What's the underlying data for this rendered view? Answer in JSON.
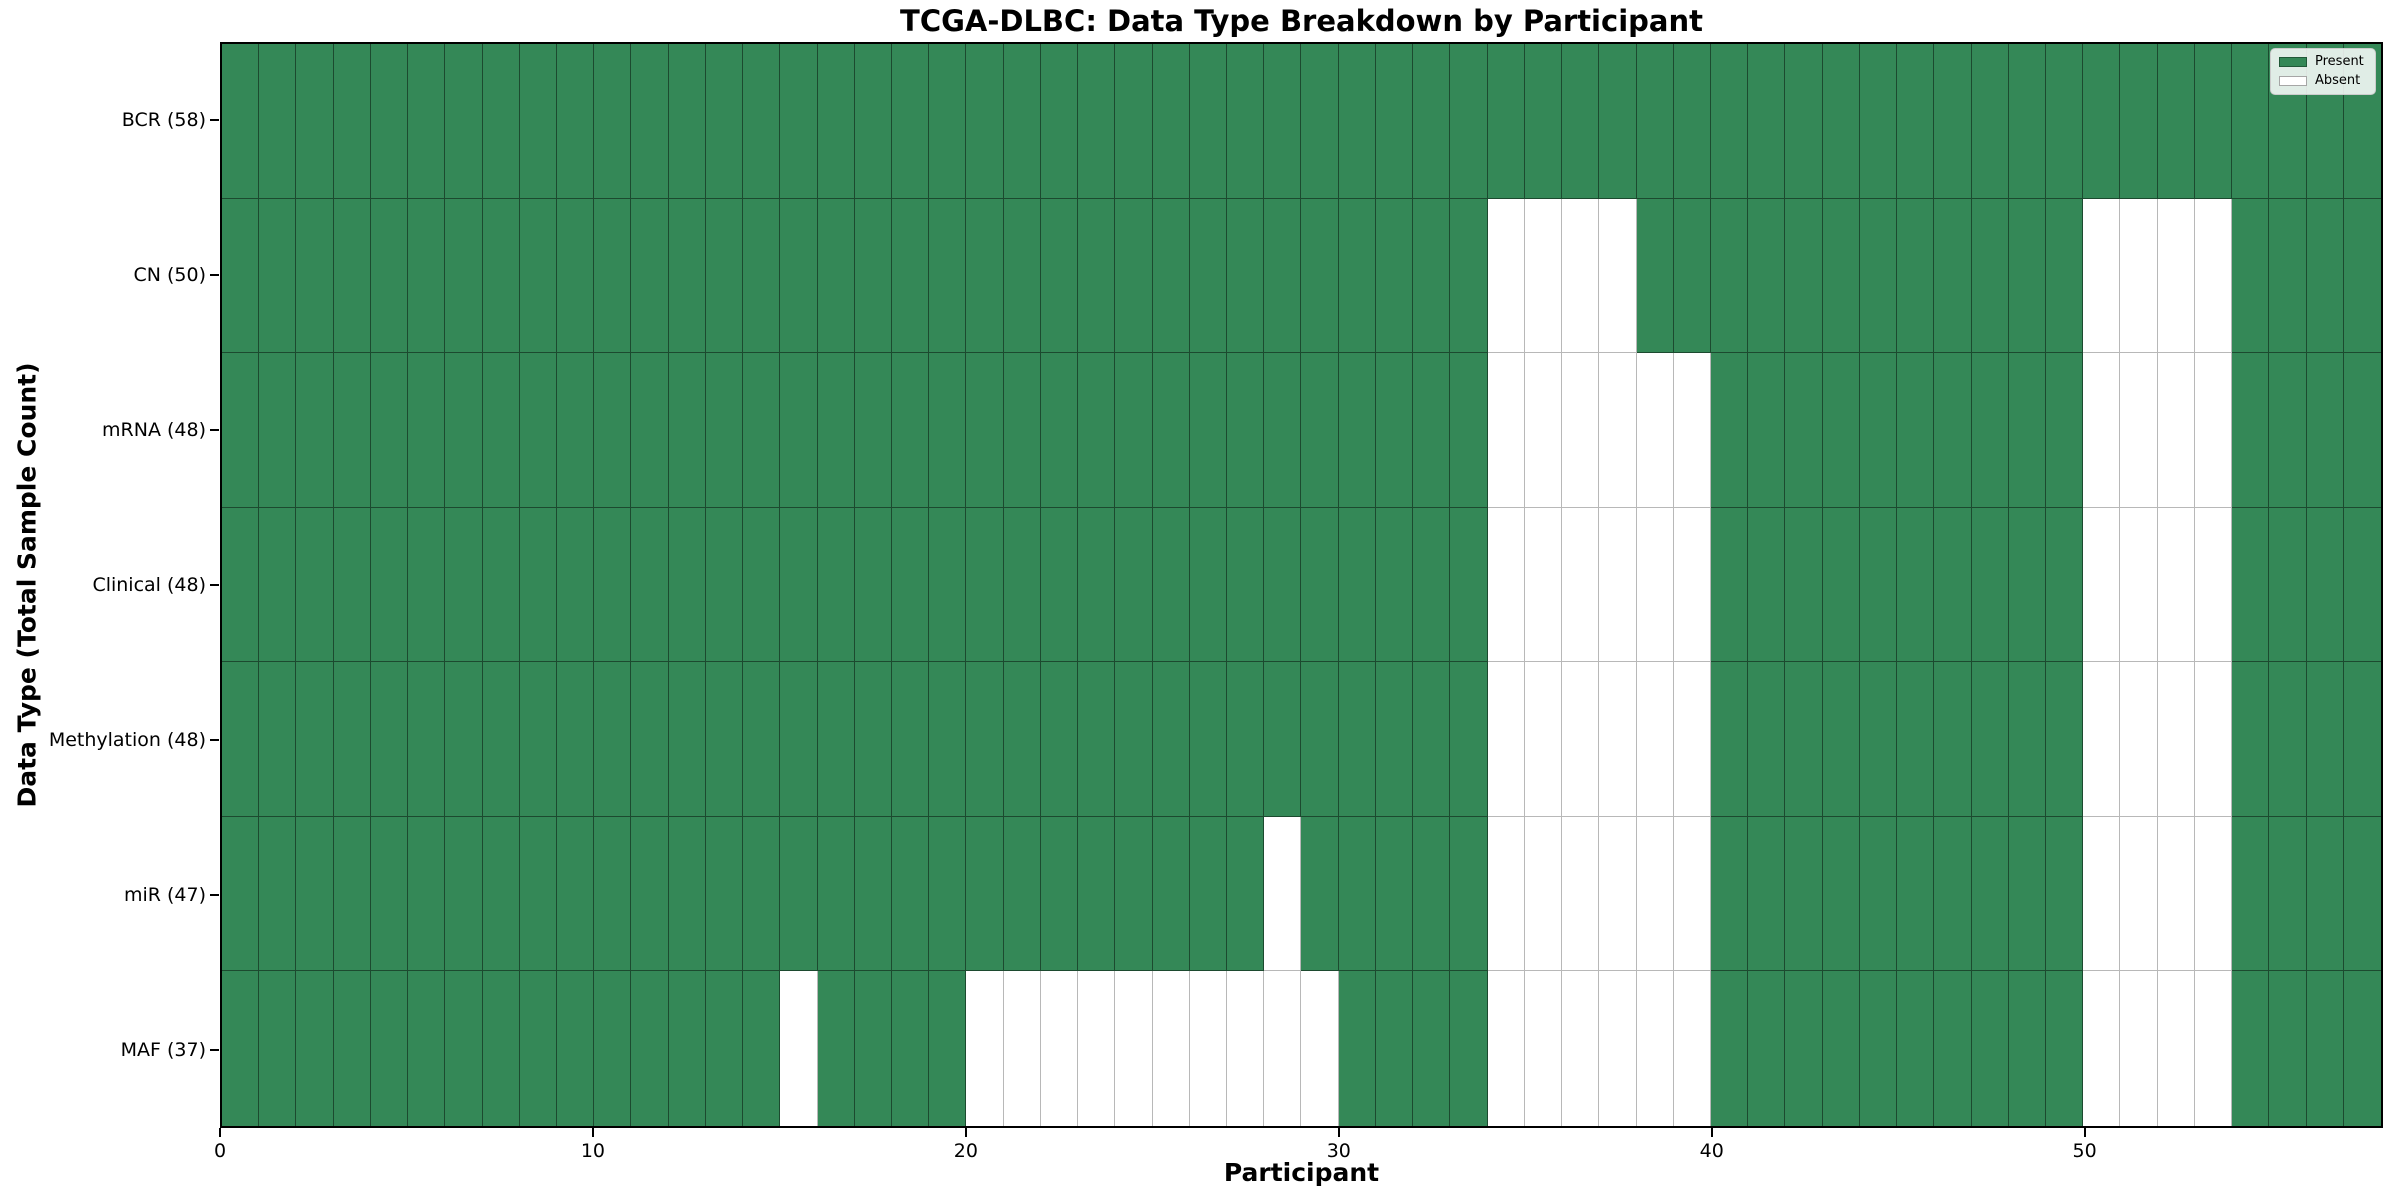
{
  "title": "TCGA-DLBC: Data Type Breakdown by Participant",
  "legend": {
    "present_label": "Present",
    "absent_label": "Absent"
  },
  "chart_data": {
    "type": "heatmap",
    "title": "TCGA-DLBC: Data Type Breakdown by Participant",
    "xlabel": "Participant",
    "ylabel": "Data Type (Total Sample Count)",
    "x_ticks": [
      0,
      10,
      20,
      30,
      40,
      50
    ],
    "x_range": [
      0,
      58
    ],
    "n_participants": 58,
    "grid": "cell-edges",
    "legend_position": "upper-right",
    "colors": {
      "present": "#348857",
      "absent": "#ffffff",
      "cell_edge": "rgba(0,0,0,0.45)"
    },
    "legend_items": [
      {
        "label": "Present",
        "color": "#348857"
      },
      {
        "label": "Absent",
        "color": "#ffffff"
      }
    ],
    "rows": [
      {
        "label": "BCR (58)",
        "data_type": "BCR",
        "total": 58,
        "absent_participants": []
      },
      {
        "label": "CN (50)",
        "data_type": "CN",
        "total": 50,
        "absent_participants": [
          34,
          35,
          36,
          37,
          50,
          51,
          52,
          53
        ]
      },
      {
        "label": "mRNA (48)",
        "data_type": "mRNA",
        "total": 48,
        "absent_participants": [
          34,
          35,
          36,
          37,
          38,
          39,
          50,
          51,
          52,
          53
        ]
      },
      {
        "label": "Clinical (48)",
        "data_type": "Clinical",
        "total": 48,
        "absent_participants": [
          34,
          35,
          36,
          37,
          38,
          39,
          50,
          51,
          52,
          53
        ]
      },
      {
        "label": "Methylation (48)",
        "data_type": "Methylation",
        "total": 48,
        "absent_participants": [
          34,
          35,
          36,
          37,
          38,
          39,
          50,
          51,
          52,
          53
        ]
      },
      {
        "label": "miR (47)",
        "data_type": "miR",
        "total": 47,
        "absent_participants": [
          28,
          34,
          35,
          36,
          37,
          38,
          39,
          50,
          51,
          52,
          53
        ]
      },
      {
        "label": "MAF (37)",
        "data_type": "MAF",
        "total": 37,
        "absent_participants": [
          15,
          20,
          21,
          22,
          23,
          24,
          25,
          26,
          27,
          28,
          29,
          34,
          35,
          36,
          37,
          38,
          39,
          50,
          51,
          52,
          53
        ]
      }
    ]
  }
}
